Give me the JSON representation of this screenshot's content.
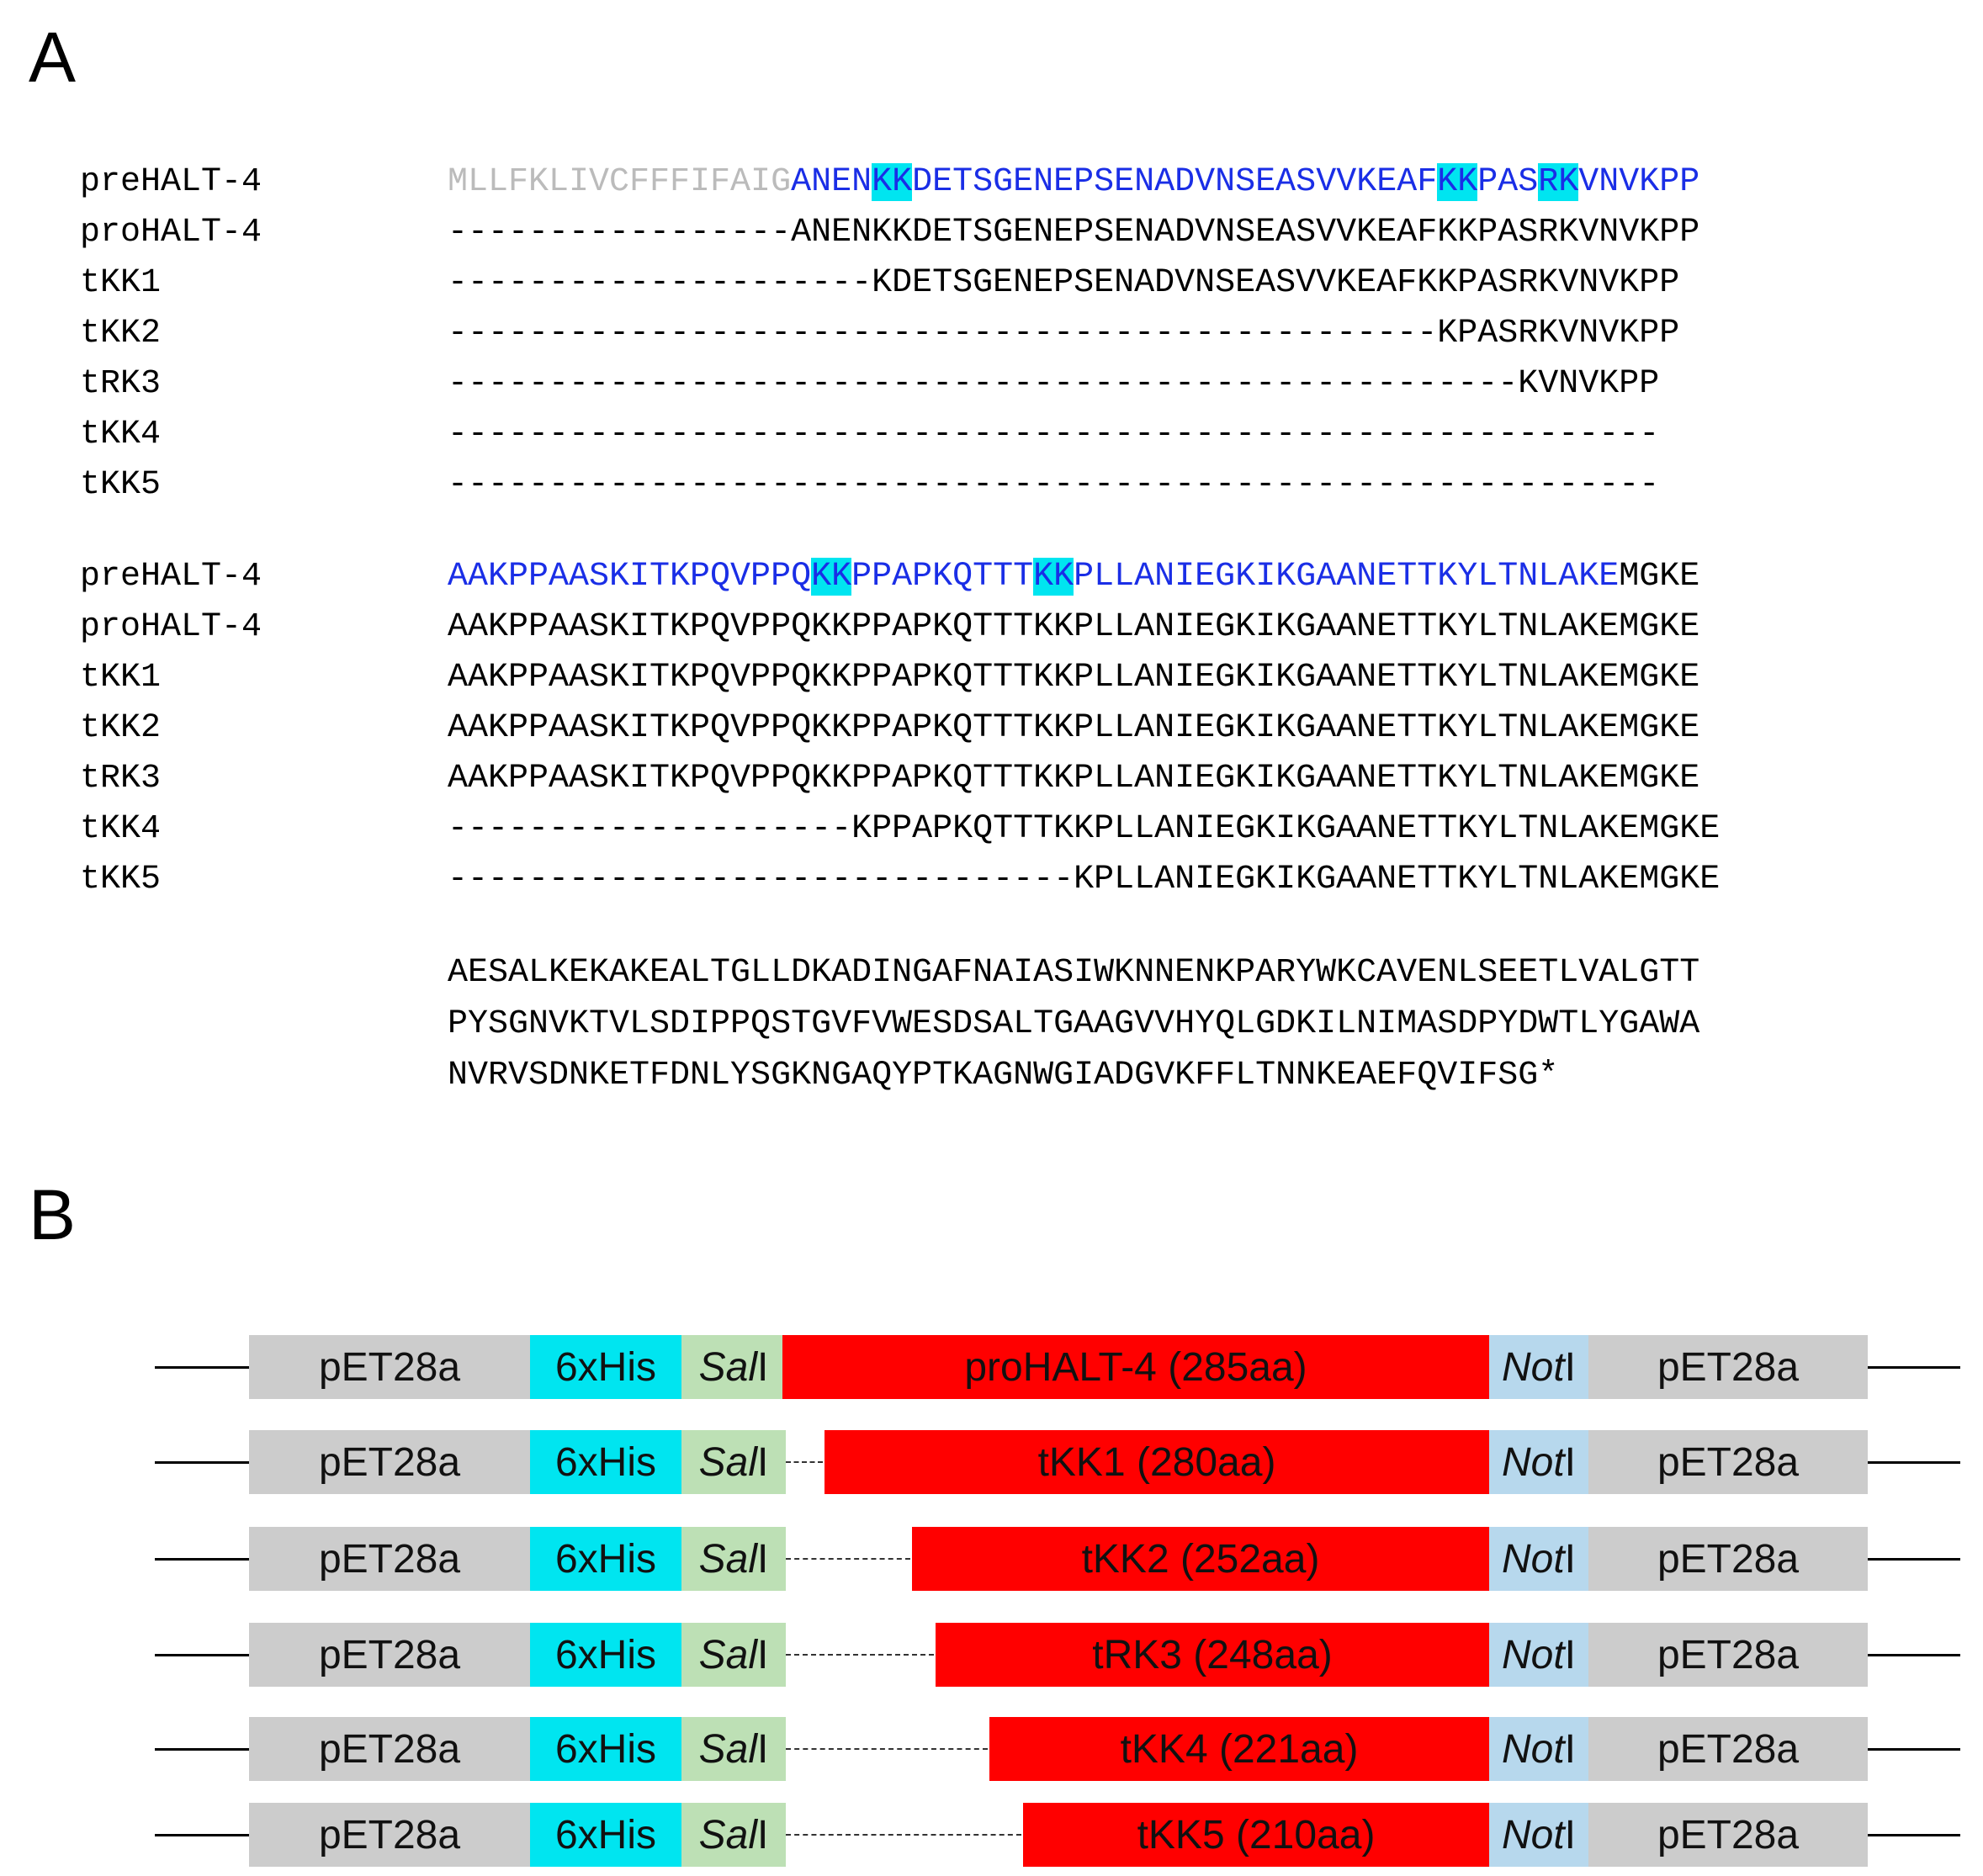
{
  "panel_a": {
    "label": "A",
    "block1": [
      {
        "name": "preHALT-4",
        "segments": [
          {
            "t": "MLLFKLIVCFFFIFAIG",
            "c": "sig"
          },
          {
            "t": "ANEN",
            "c": "pro"
          },
          {
            "t": "KK",
            "c": "kk"
          },
          {
            "t": "DETSGENEPSENADVNSEASVVKEAF",
            "c": "pro"
          },
          {
            "t": "KK",
            "c": "kk"
          },
          {
            "t": "PAS",
            "c": "pro"
          },
          {
            "t": "RK",
            "c": "kk"
          },
          {
            "t": "VNVKPP",
            "c": "pro"
          }
        ]
      },
      {
        "name": "proHALT-4",
        "segments": [
          {
            "t": "-----------------ANENKKDETSGENEPSENADVNSEASVVKEAFKKPASRKVNVKPP",
            "c": "plain"
          }
        ]
      },
      {
        "name": "tKK1",
        "segments": [
          {
            "t": "---------------------KDETSGENEPSENADVNSEASVVKEAFKKPASRKVNVKPP",
            "c": "plain"
          }
        ]
      },
      {
        "name": "tKK2",
        "segments": [
          {
            "t": "-------------------------------------------------KPASRKVNVKPP",
            "c": "plain"
          }
        ]
      },
      {
        "name": "tRK3",
        "segments": [
          {
            "t": "-----------------------------------------------------KVNVKPP",
            "c": "plain"
          }
        ]
      },
      {
        "name": "tKK4",
        "segments": [
          {
            "t": "------------------------------------------------------------",
            "c": "plain"
          }
        ]
      },
      {
        "name": "tKK5",
        "segments": [
          {
            "t": "------------------------------------------------------------",
            "c": "plain"
          }
        ]
      }
    ],
    "block2": [
      {
        "name": "preHALT-4",
        "segments": [
          {
            "t": "AAKPPAASKITKPQVPPQ",
            "c": "pro"
          },
          {
            "t": "KK",
            "c": "kk"
          },
          {
            "t": "PPAPKQTTT",
            "c": "pro"
          },
          {
            "t": "KK",
            "c": "kk"
          },
          {
            "t": "PLLANIEGKIKGAANETTKYLTNLAKE",
            "c": "pro"
          },
          {
            "t": "MGKE",
            "c": "plain"
          }
        ]
      },
      {
        "name": "proHALT-4",
        "segments": [
          {
            "t": "AAKPPAASKITKPQVPPQKKPPAPKQTTTKKPLLANIEGKIKGAANETTKYLTNLAKEMGKE",
            "c": "plain"
          }
        ]
      },
      {
        "name": "tKK1",
        "segments": [
          {
            "t": "AAKPPAASKITKPQVPPQKKPPAPKQTTTKKPLLANIEGKIKGAANETTKYLTNLAKEMGKE",
            "c": "plain"
          }
        ]
      },
      {
        "name": "tKK2",
        "segments": [
          {
            "t": "AAKPPAASKITKPQVPPQKKPPAPKQTTTKKPLLANIEGKIKGAANETTKYLTNLAKEMGKE",
            "c": "plain"
          }
        ]
      },
      {
        "name": "tRK3",
        "segments": [
          {
            "t": "AAKPPAASKITKPQVPPQKKPPAPKQTTTKKPLLANIEGKIKGAANETTKYLTNLAKEMGKE",
            "c": "plain"
          }
        ]
      },
      {
        "name": "tKK4",
        "segments": [
          {
            "t": "--------------------KPPAPKQTTTKKPLLANIEGKIKGAANETTKYLTNLAKEMGKE",
            "c": "plain"
          }
        ]
      },
      {
        "name": "tKK5",
        "segments": [
          {
            "t": "-------------------------------KPLLANIEGKIKGAANETTKYLTNLAKEMGKE",
            "c": "plain"
          }
        ]
      }
    ],
    "tail": [
      "AESALKEKAKEALTGLLDKADINGAFNAIASIWKNNENKPARYWKCAVENLSEETLVALGTT",
      "PYSGNVKTVLSDIPPQSTGVFVWESDSALTGAAGVVHYQLGDKILNIMASDPYDWTLYGAWA",
      "NVRVSDNKETFDNLYSGKNGAQYPTKAGNWGIADGVKFFLTNNKEAEFQVIFSG*"
    ]
  },
  "panel_b": {
    "label": "B",
    "vector_label": "pET28a",
    "tag_label": "6xHis",
    "sal_label_italic": "Sal",
    "sal_label_roman": "I",
    "not_label_italic": "Not",
    "not_label_roman": "I",
    "constructs": [
      {
        "name": "proHALT-4",
        "insert": "proHALT-4 (285aa)"
      },
      {
        "name": "tKK1",
        "insert": "tKK1 (280aa)"
      },
      {
        "name": "tKK2",
        "insert": "tKK2 (252aa)"
      },
      {
        "name": "tRK3",
        "insert": "tRK3 (248aa)"
      },
      {
        "name": "tKK4",
        "insert": "tKK4 (221aa)"
      },
      {
        "name": "tKK5",
        "insert": "tKK5 (210aa)"
      }
    ],
    "colors": {
      "vector": "#cccccc",
      "his_tag": "#00e5f0",
      "sal_site": "#bde0b5",
      "insert": "#ff0000",
      "not_site": "#b7d8ed"
    }
  }
}
